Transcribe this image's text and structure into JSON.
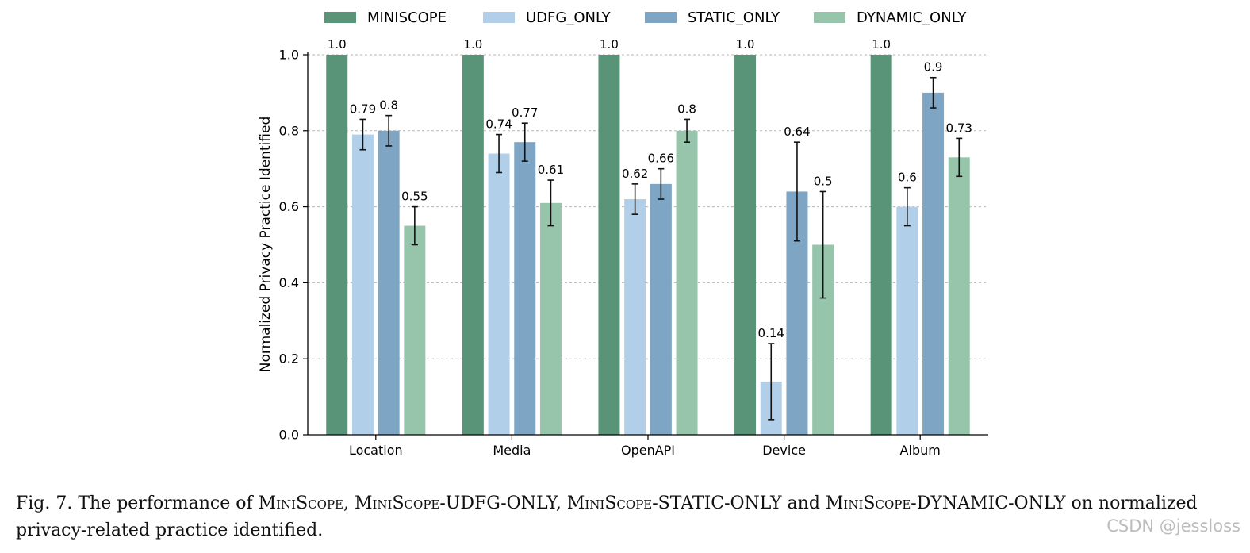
{
  "chart_data": {
    "type": "bar",
    "ylabel": "Normalized Privacy Practice Identified",
    "xlabel": "",
    "ylim": [
      0,
      1.0
    ],
    "yticks": [
      "0.0",
      "0.2",
      "0.4",
      "0.6",
      "0.8",
      "1.0"
    ],
    "grid": "horizontal dashed",
    "legend_position": "top",
    "categories": [
      "Location",
      "Media",
      "OpenAPI",
      "Device",
      "Album"
    ],
    "series": [
      {
        "name": "MINISCOPE",
        "color": "#5a9478",
        "values": [
          1.0,
          1.0,
          1.0,
          1.0,
          1.0
        ],
        "labels": [
          "1.0",
          "1.0",
          "1.0",
          "1.0",
          "1.0"
        ],
        "errors": [
          0,
          0,
          0,
          0,
          0
        ]
      },
      {
        "name": "UDFG_ONLY",
        "color": "#b2cfe9",
        "values": [
          0.79,
          0.74,
          0.62,
          0.14,
          0.6
        ],
        "labels": [
          "0.79",
          "0.74",
          "0.62",
          "0.14",
          "0.6"
        ],
        "errors": [
          0.04,
          0.05,
          0.04,
          0.1,
          0.05
        ]
      },
      {
        "name": "STATIC_ONLY",
        "color": "#7ea6c4",
        "values": [
          0.8,
          0.77,
          0.66,
          0.64,
          0.9
        ],
        "labels": [
          "0.8",
          "0.77",
          "0.66",
          "0.64",
          "0.9"
        ],
        "errors": [
          0.04,
          0.05,
          0.04,
          0.13,
          0.04
        ]
      },
      {
        "name": "DYNAMIC_ONLY",
        "color": "#96c5ab",
        "values": [
          0.55,
          0.61,
          0.8,
          0.5,
          0.73
        ],
        "labels": [
          "0.55",
          "0.61",
          "0.8",
          "0.5",
          "0.73"
        ],
        "errors": [
          0.05,
          0.06,
          0.03,
          0.14,
          0.05
        ]
      }
    ]
  },
  "caption": {
    "prefix": "Fig. 7.  The performance of ",
    "name1": "MiniScope",
    "sep1": ", ",
    "name2": "MiniScope",
    "suffix2": "-UDFG-ONLY, ",
    "name3": "MiniScope",
    "suffix3": "-STATIC-ONLY and ",
    "name4": "MiniScope",
    "suffix4": "-DYNAMIC-ONLY on normalized privacy-related practice identified."
  },
  "watermark": "CSDN @jessloss"
}
